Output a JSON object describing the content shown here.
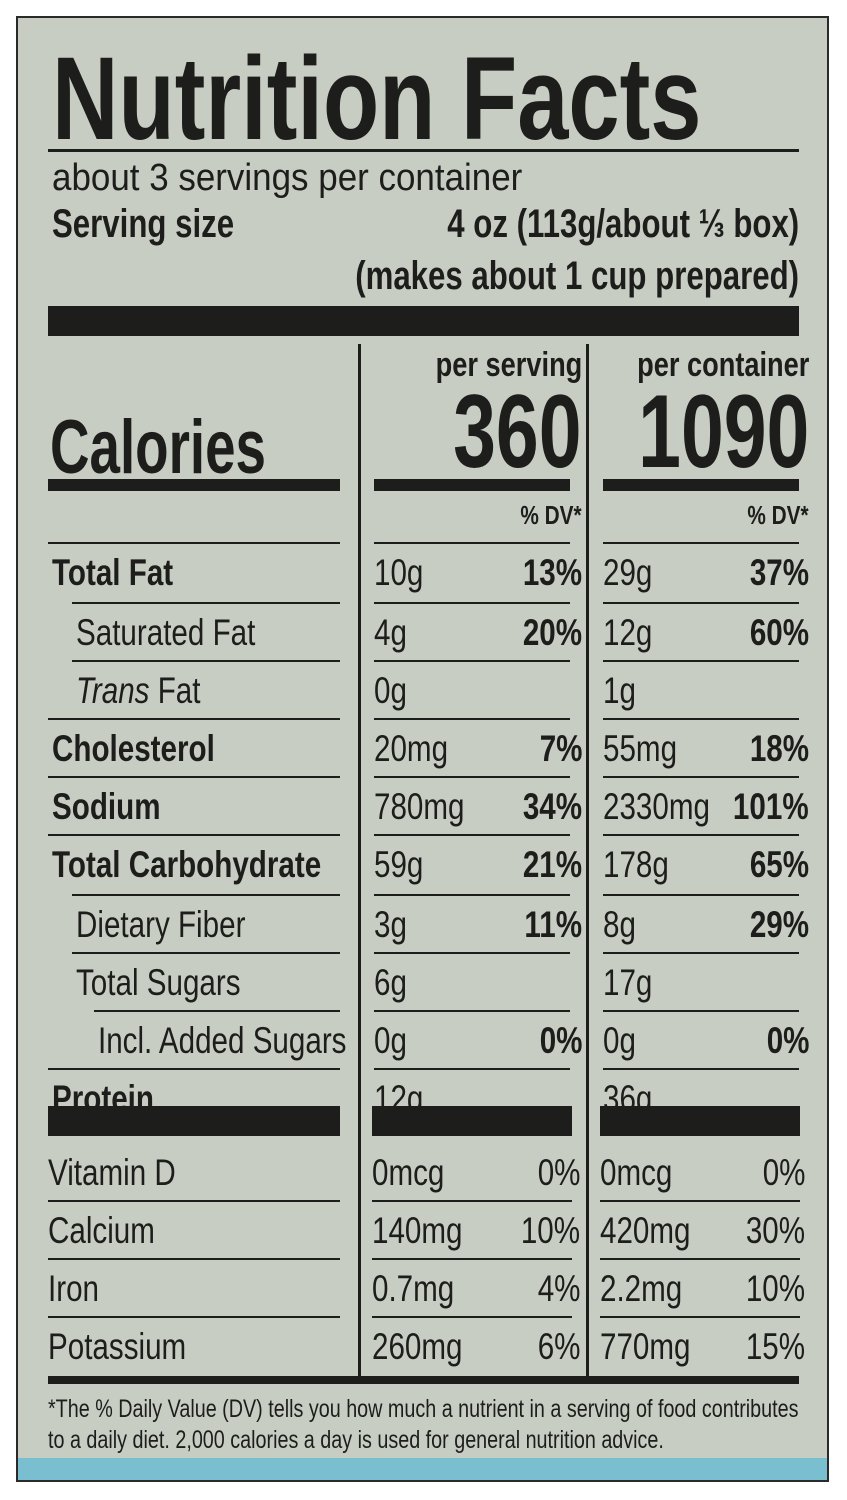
{
  "title": "Nutrition Facts",
  "servings_per_container": "about 3 servings per container",
  "serving_size_label": "Serving size",
  "serving_size_value": "4 oz (113g/about ⅓ box)",
  "serving_size_note": "(makes about 1 cup prepared)",
  "columns": {
    "per_serving": "per serving",
    "per_container": "per container"
  },
  "calories": {
    "label": "Calories",
    "per_serving": "360",
    "per_container": "1090"
  },
  "dv_header": "% DV*",
  "nutrients": [
    {
      "name": "Total Fat",
      "name_prefix": "",
      "bold": true,
      "indent": 0,
      "serving_amount": "10g",
      "serving_dv": "13%",
      "container_amount": "29g",
      "container_dv": "37%"
    },
    {
      "name": "Saturated Fat",
      "name_prefix": "",
      "bold": false,
      "indent": 1,
      "serving_amount": "4g",
      "serving_dv": "20%",
      "container_amount": "12g",
      "container_dv": "60%"
    },
    {
      "name": " Fat",
      "name_prefix": "Trans",
      "bold": false,
      "indent": 1,
      "serving_amount": "0g",
      "serving_dv": "",
      "container_amount": "1g",
      "container_dv": ""
    },
    {
      "name": "Cholesterol",
      "name_prefix": "",
      "bold": true,
      "indent": 0,
      "serving_amount": "20mg",
      "serving_dv": "7%",
      "container_amount": "55mg",
      "container_dv": "18%"
    },
    {
      "name": "Sodium",
      "name_prefix": "",
      "bold": true,
      "indent": 0,
      "serving_amount": "780mg",
      "serving_dv": "34%",
      "container_amount": "2330mg",
      "container_dv": "101%"
    },
    {
      "name": "Total Carbohydrate",
      "name_prefix": "",
      "bold": true,
      "indent": 0,
      "serving_amount": "59g",
      "serving_dv": "21%",
      "container_amount": "178g",
      "container_dv": "65%"
    },
    {
      "name": "Dietary Fiber",
      "name_prefix": "",
      "bold": false,
      "indent": 1,
      "serving_amount": "3g",
      "serving_dv": "11%",
      "container_amount": "8g",
      "container_dv": "29%"
    },
    {
      "name": "Total Sugars",
      "name_prefix": "",
      "bold": false,
      "indent": 1,
      "serving_amount": "6g",
      "serving_dv": "",
      "container_amount": "17g",
      "container_dv": ""
    },
    {
      "name": "Incl. Added Sugars",
      "name_prefix": "",
      "bold": false,
      "indent": 2,
      "serving_amount": "0g",
      "serving_dv": "0%",
      "container_amount": "0g",
      "container_dv": "0%"
    },
    {
      "name": "Protein",
      "name_prefix": "",
      "bold": true,
      "indent": 0,
      "serving_amount": "12g",
      "serving_dv": "",
      "container_amount": "36g",
      "container_dv": ""
    }
  ],
  "vitamins": [
    {
      "name": "Vitamin D",
      "serving_amount": "0mcg",
      "serving_dv": "0%",
      "container_amount": "0mcg",
      "container_dv": "0%"
    },
    {
      "name": "Calcium",
      "serving_amount": "140mg",
      "serving_dv": "10%",
      "container_amount": "420mg",
      "container_dv": "30%"
    },
    {
      "name": "Iron",
      "serving_amount": "0.7mg",
      "serving_dv": "4%",
      "container_amount": "2.2mg",
      "container_dv": "10%"
    },
    {
      "name": "Potassium",
      "serving_amount": "260mg",
      "serving_dv": "6%",
      "container_amount": "770mg",
      "container_dv": "15%"
    }
  ],
  "footnote": "*The % Daily Value (DV) tells you how much a nutrient in a serving of food contributes to a daily diet. 2,000 calories a day is used for general nutrition advice.",
  "colors": {
    "panel": "#c7cdc3",
    "ink": "#1d1d1b",
    "accent_strip": "#79bfd0"
  }
}
